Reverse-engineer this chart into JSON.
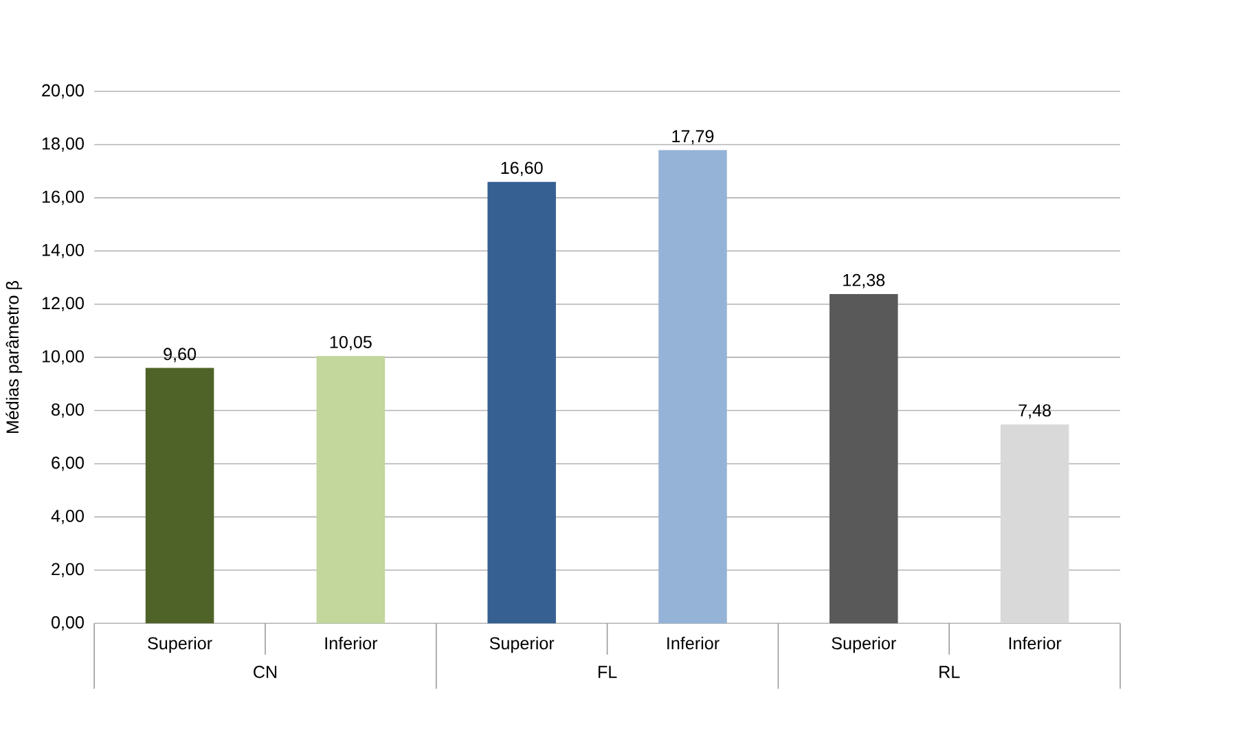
{
  "chart_data": {
    "type": "bar",
    "ylabel": "Médias parâmetro β",
    "categories": [
      "Superior",
      "Inferior",
      "Superior",
      "Inferior",
      "Superior",
      "Inferior"
    ],
    "values": [
      9.6,
      10.05,
      16.6,
      17.79,
      12.38,
      7.48
    ],
    "colors": [
      "#4f6228",
      "#c3d69b",
      "#366092",
      "#95b3d7",
      "#595959",
      "#d9d9d9"
    ],
    "value_labels": [
      "9,60",
      "10,05",
      "16,60",
      "17,79",
      "12,38",
      "7,48"
    ],
    "ylim": [
      0,
      20
    ],
    "yticks": [
      {
        "value": 0,
        "label": "0,00"
      },
      {
        "value": 2,
        "label": "2,00"
      },
      {
        "value": 4,
        "label": "4,00"
      },
      {
        "value": 6,
        "label": "6,00"
      },
      {
        "value": 8,
        "label": "8,00"
      },
      {
        "value": 10,
        "label": "10,00"
      },
      {
        "value": 12,
        "label": "12,00"
      },
      {
        "value": 14,
        "label": "14,00"
      },
      {
        "value": 16,
        "label": "16,00"
      },
      {
        "value": 18,
        "label": "18,00"
      },
      {
        "value": 20,
        "label": "20,00"
      }
    ],
    "grid": "y",
    "annotations": [
      "CN",
      "FL",
      "RL"
    ]
  }
}
